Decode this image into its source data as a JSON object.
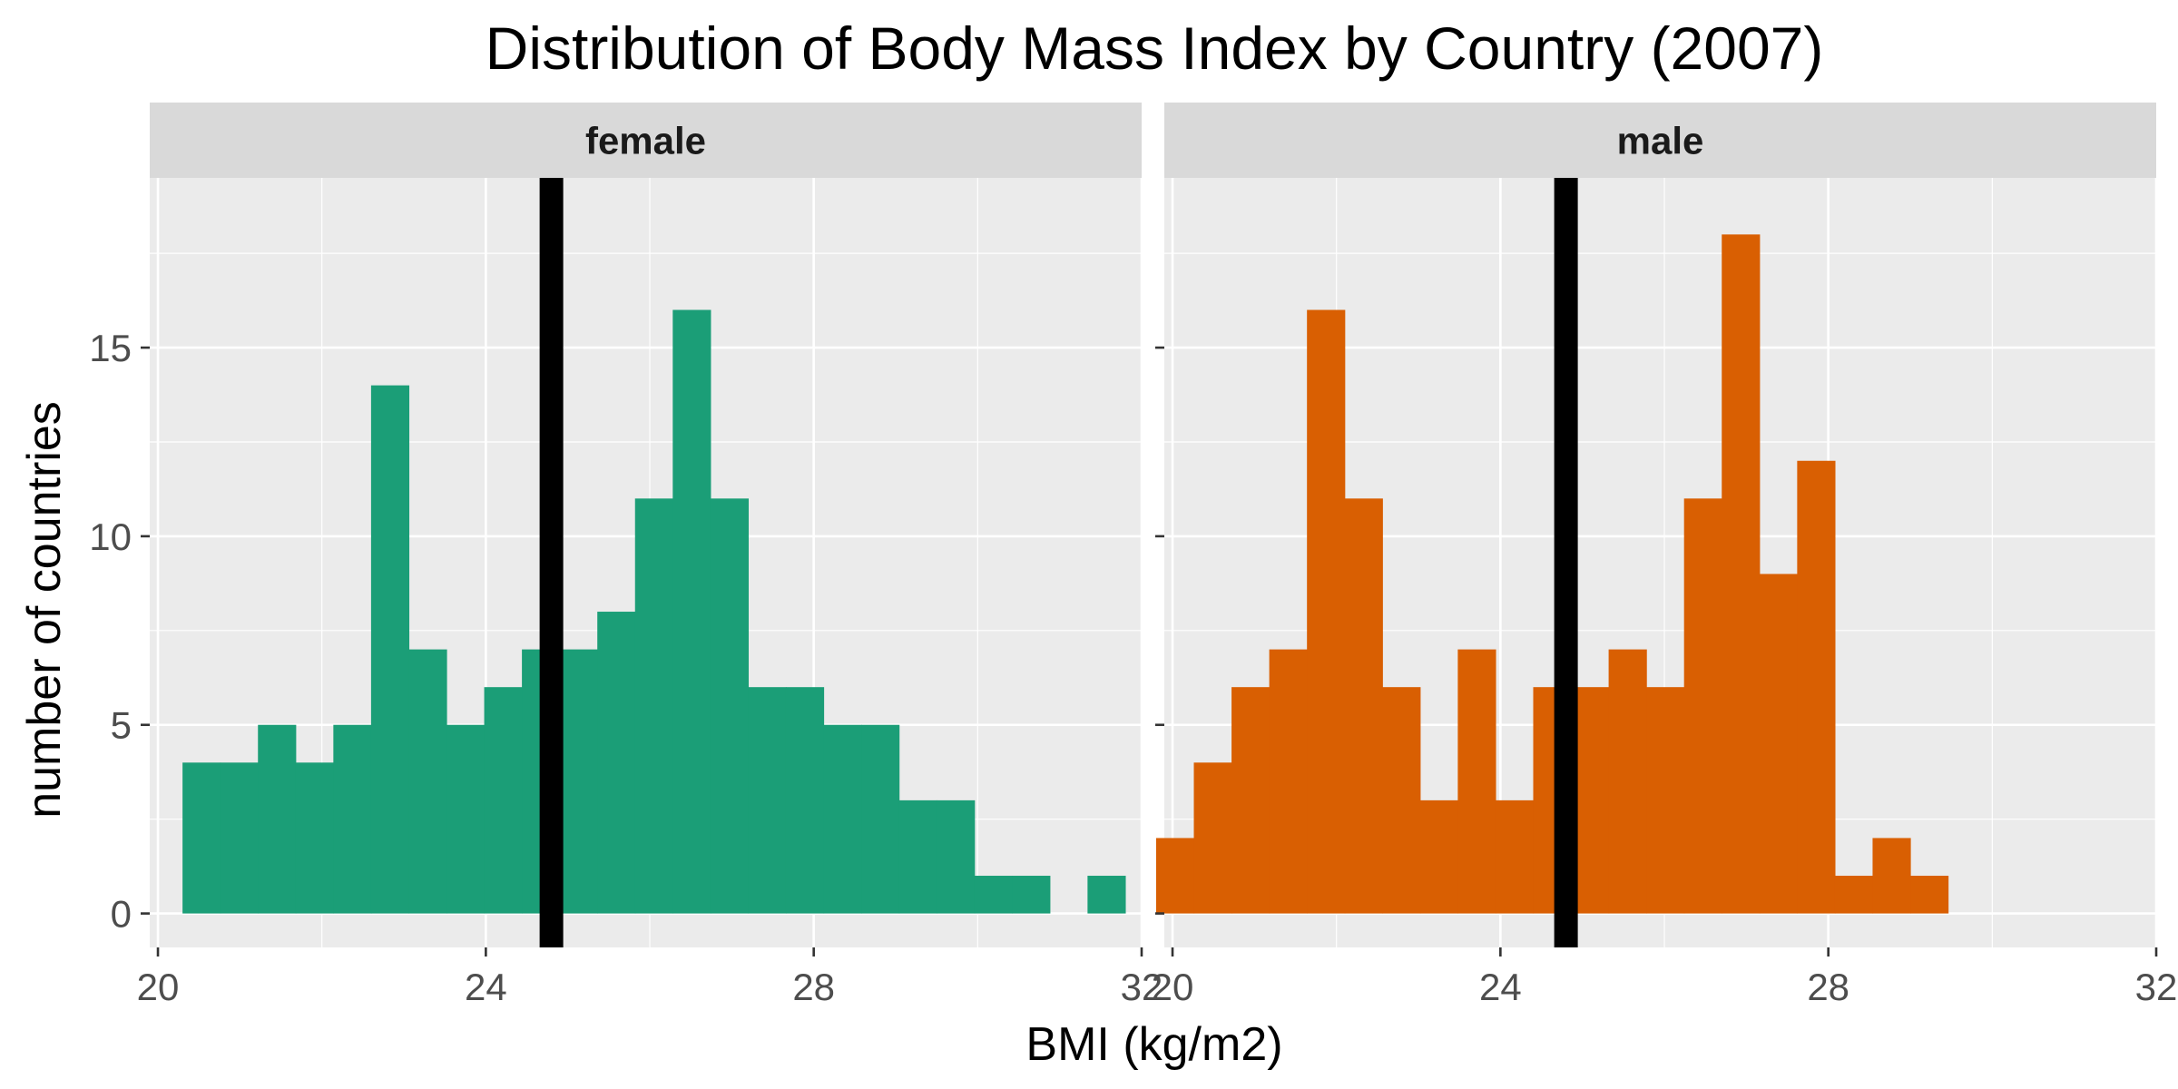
{
  "chart_data": {
    "type": "bar",
    "title": "Distribution of Body Mass Index by Country (2007)",
    "xlabel": "BMI (kg/m2)",
    "ylabel": "number of countries",
    "xlim": [
      19.9,
      32.0
    ],
    "ylim": [
      -0.9,
      19.5
    ],
    "x_ticks": [
      20,
      24,
      28,
      32
    ],
    "y_ticks": [
      0,
      5,
      10,
      15
    ],
    "grid": true,
    "bin_width": 0.46,
    "reference_line": {
      "x": 24.8,
      "color": "#000000"
    },
    "facets": [
      {
        "name": "female",
        "color": "#1b9e77",
        "bins": [
          {
            "x": 20.53,
            "count": 4
          },
          {
            "x": 20.99,
            "count": 4
          },
          {
            "x": 21.45,
            "count": 5
          },
          {
            "x": 21.91,
            "count": 4
          },
          {
            "x": 22.37,
            "count": 5
          },
          {
            "x": 22.83,
            "count": 14
          },
          {
            "x": 23.29,
            "count": 7
          },
          {
            "x": 23.75,
            "count": 5
          },
          {
            "x": 24.21,
            "count": 6
          },
          {
            "x": 24.67,
            "count": 7
          },
          {
            "x": 25.13,
            "count": 7
          },
          {
            "x": 25.59,
            "count": 8
          },
          {
            "x": 26.05,
            "count": 11
          },
          {
            "x": 26.51,
            "count": 16
          },
          {
            "x": 26.97,
            "count": 11
          },
          {
            "x": 27.43,
            "count": 6
          },
          {
            "x": 27.89,
            "count": 6
          },
          {
            "x": 28.35,
            "count": 5
          },
          {
            "x": 28.81,
            "count": 5
          },
          {
            "x": 29.27,
            "count": 3
          },
          {
            "x": 29.73,
            "count": 3
          },
          {
            "x": 30.19,
            "count": 1
          },
          {
            "x": 30.65,
            "count": 1
          },
          {
            "x": 31.57,
            "count": 1
          }
        ]
      },
      {
        "name": "male",
        "color": "#d95f02",
        "bins": [
          {
            "x": 20.03,
            "count": 2
          },
          {
            "x": 20.49,
            "count": 4
          },
          {
            "x": 20.95,
            "count": 6
          },
          {
            "x": 21.41,
            "count": 7
          },
          {
            "x": 21.87,
            "count": 16
          },
          {
            "x": 22.33,
            "count": 11
          },
          {
            "x": 22.79,
            "count": 6
          },
          {
            "x": 23.25,
            "count": 3
          },
          {
            "x": 23.71,
            "count": 7
          },
          {
            "x": 24.17,
            "count": 3
          },
          {
            "x": 24.63,
            "count": 6
          },
          {
            "x": 25.09,
            "count": 6
          },
          {
            "x": 25.55,
            "count": 7
          },
          {
            "x": 26.01,
            "count": 6
          },
          {
            "x": 26.47,
            "count": 11
          },
          {
            "x": 26.93,
            "count": 18
          },
          {
            "x": 27.39,
            "count": 9
          },
          {
            "x": 27.85,
            "count": 12
          },
          {
            "x": 28.31,
            "count": 1
          },
          {
            "x": 28.77,
            "count": 2
          },
          {
            "x": 29.23,
            "count": 1
          }
        ]
      }
    ]
  }
}
